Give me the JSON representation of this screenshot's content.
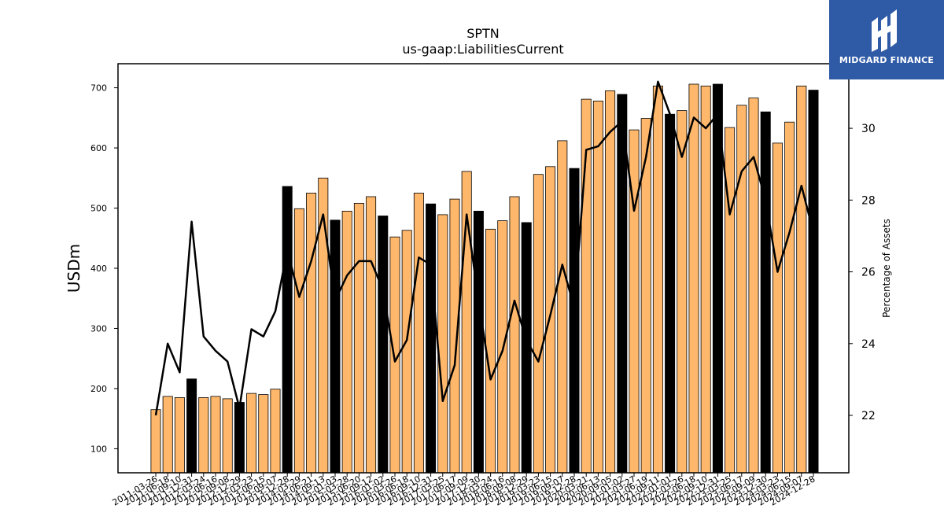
{
  "chart_data": {
    "type": "bar",
    "title": "SPTN",
    "subtitle": "us-gaap:LiabilitiesCurrent",
    "ylabel": "USDm",
    "y2label": "Percentage of Assets",
    "ylim": [
      60,
      740
    ],
    "y2lim": [
      20.4,
      31.8
    ],
    "yticks": [
      100,
      200,
      300,
      400,
      500,
      600,
      700
    ],
    "y2ticks": [
      22,
      24,
      26,
      28,
      30
    ],
    "colors": {
      "normal": "#ffb86b",
      "annual": "#000000",
      "line": "#000000",
      "edge": "#000000"
    },
    "categories": [
      "2011-03-26",
      "2011-06-18",
      "2011-09-10",
      "2011-12-31",
      "2012-03-24",
      "2012-06-16",
      "2012-09-08",
      "2012-12-29",
      "2013-03-23",
      "2013-06-15",
      "2013-09-07",
      "2013-12-28",
      "2014-03-29",
      "2014-06-21",
      "2014-09-13",
      "2015-01-03",
      "2015-03-28",
      "2015-06-20",
      "2015-09-12",
      "2016-01-02",
      "2016-03-26",
      "2016-06-18",
      "2016-09-10",
      "2016-12-31",
      "2017-03-25",
      "2017-06-17",
      "2017-09-09",
      "2017-12-30",
      "2018-03-24",
      "2018-06-16",
      "2018-09-08",
      "2018-12-29",
      "2019-03-23",
      "2019-06-15",
      "2019-09-07",
      "2019-12-28",
      "2020-03-21",
      "2020-06-13",
      "2020-09-05",
      "2021-01-02",
      "2021-03-27",
      "2021-06-19",
      "2021-09-11",
      "2022-01-01",
      "2022-03-26",
      "2022-06-18",
      "2022-09-10",
      "2022-12-31",
      "2023-03-25",
      "2023-06-17",
      "2023-09-09",
      "2023-12-30",
      "2024-03-23",
      "2024-06-15",
      "2024-09-07",
      "2024-12-28"
    ],
    "tick_labels": [
      "2011-03-26",
      "2011-06-18",
      "2011-09-10",
      "2011-12-31",
      "2012-03-24",
      "2012-06-16",
      "2012-09-08",
      "2012-12-29",
      "2013-03-23",
      "2013-06-15",
      "2013-09-07",
      "2013-12-28",
      "2014-03-29",
      "2014-06-21",
      "2014-09-13",
      "2015-01-03",
      "2015-03-28",
      "2015-06-20",
      "2015-09-12",
      "2016-01-02",
      "2016-03-26",
      "2016-06-18",
      "2016-09-10",
      "2016-12-31",
      "2017-03-25",
      "2017-06-17",
      "2017-09-09",
      "2017-12-30",
      "2018-03-24",
      "2018-06-16",
      "2018-09-08",
      "2018-12-29",
      "2019-03-23",
      "2019-06-15",
      "2019-09-07",
      "2019-12-28",
      "2020-03-21",
      "2020-06-13",
      "2020-09-05",
      "2021-01-02",
      "2021-03-27",
      "2021-06-19",
      "2021-09-11",
      "2022-01-01",
      "2022-03-26",
      "2022-06-18",
      "2022-09-10",
      "2022-12-31",
      "2023-03-25",
      "2023-06-17",
      "2023-09-09",
      "2023-12-30",
      "2024-03-23",
      "2024-06-15",
      "2024-09-07",
      "2024-12-28"
    ],
    "annual": [
      false,
      false,
      false,
      true,
      false,
      false,
      false,
      true,
      false,
      false,
      false,
      true,
      false,
      false,
      false,
      true,
      false,
      false,
      false,
      true,
      false,
      false,
      false,
      true,
      false,
      false,
      false,
      true,
      false,
      false,
      false,
      true,
      false,
      false,
      false,
      true,
      false,
      false,
      false,
      true,
      false,
      false,
      false,
      true,
      false,
      false,
      false,
      true,
      false,
      false,
      false,
      true,
      false,
      false,
      false,
      true
    ],
    "series": [
      {
        "name": "LiabilitiesCurrent",
        "type": "bar",
        "values": [
          165,
          187,
          185,
          216,
          185,
          187,
          183,
          177,
          192,
          190,
          199,
          536,
          499,
          525,
          550,
          480,
          495,
          508,
          519,
          487,
          452,
          463,
          525,
          507,
          489,
          515,
          561,
          495,
          465,
          479,
          519,
          476,
          556,
          569,
          612,
          566,
          681,
          678,
          695,
          689,
          630,
          649,
          703,
          656,
          662,
          706,
          703,
          706,
          634,
          671,
          683,
          660,
          608,
          643,
          703,
          696
        ]
      },
      {
        "name": "Percentage of Assets",
        "type": "line",
        "axis": "y2",
        "values": [
          22.0,
          24.0,
          23.2,
          27.4,
          24.2,
          23.8,
          23.5,
          22.2,
          24.4,
          24.2,
          24.9,
          26.6,
          25.3,
          26.3,
          27.6,
          25.2,
          25.9,
          26.3,
          26.3,
          25.5,
          23.5,
          24.1,
          26.4,
          26.2,
          22.4,
          23.4,
          27.6,
          25.2,
          23.0,
          23.8,
          25.2,
          24.1,
          23.5,
          24.8,
          26.2,
          25.0,
          29.4,
          29.5,
          29.9,
          30.2,
          27.7,
          29.2,
          31.3,
          30.4,
          29.2,
          30.3,
          30.0,
          30.4,
          27.6,
          28.8,
          29.2,
          28.0,
          26.0,
          27.1,
          28.4,
          27.1
        ]
      }
    ]
  },
  "logo": {
    "text": "MIDGARD FINANCE"
  }
}
